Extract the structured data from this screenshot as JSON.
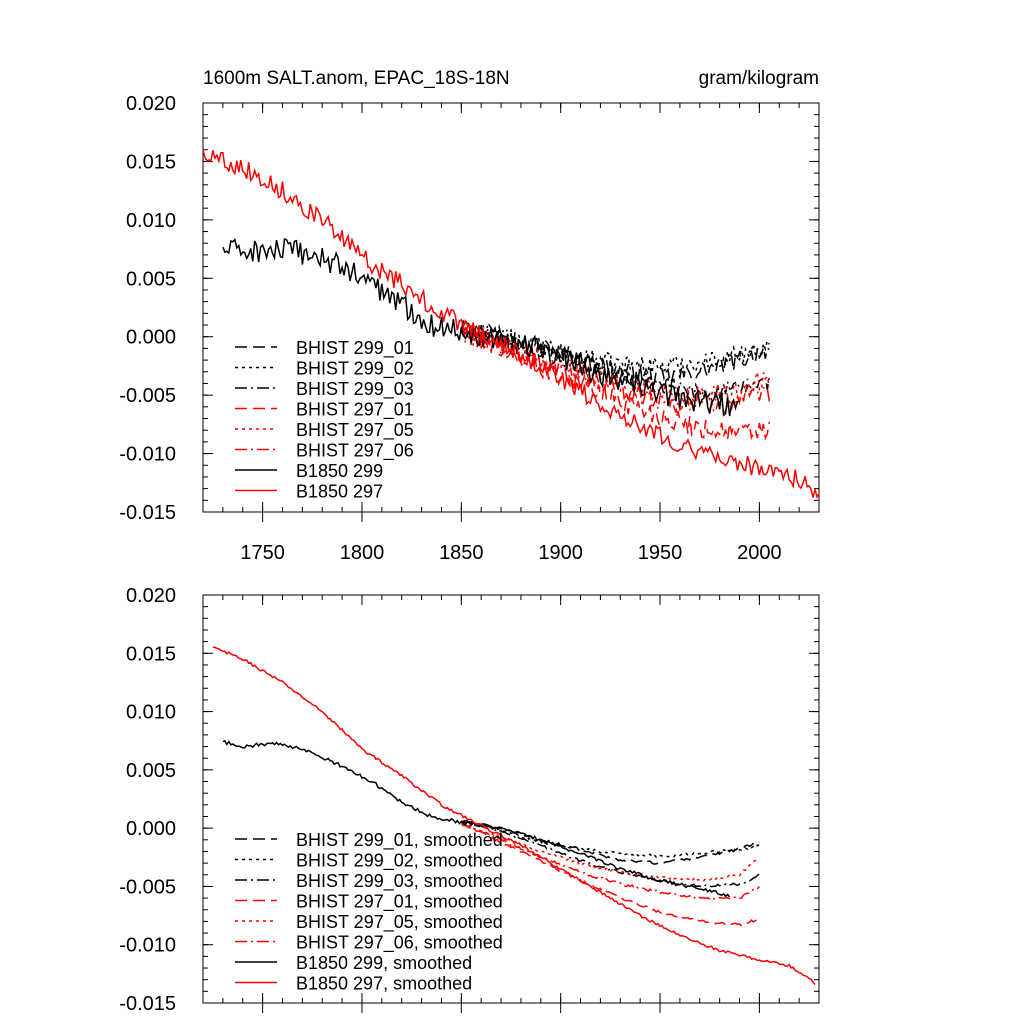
{
  "chart_data": [
    {
      "type": "line",
      "title": "1600m SALT.anom, EPAC_18S-18N",
      "units": "gram/kilogram",
      "xlim": [
        1720,
        2030
      ],
      "ylim": [
        -0.015,
        0.02
      ],
      "x_ticks": [
        1750,
        1800,
        1850,
        1900,
        1950,
        2000
      ],
      "x_tick_labels": [
        "1750",
        "1800",
        "1850",
        "1900",
        "1950",
        "2000"
      ],
      "y_ticks": [
        0.02,
        0.015,
        0.01,
        0.005,
        0.0,
        -0.005,
        -0.01,
        -0.015
      ],
      "y_tick_labels": [
        "0.020",
        "0.015",
        "0.010",
        "0.005",
        "0.000",
        "-0.005",
        "-0.010",
        "-0.015"
      ],
      "legend_position": "bottom-left",
      "series": [
        {
          "name": "BHIST 299_01",
          "color": "#000000",
          "dash": "dash",
          "x": [
            1850,
            1870,
            1890,
            1910,
            1930,
            1950,
            1970,
            1990,
            2005
          ],
          "y": [
            0.0008,
            0.0002,
            -0.0008,
            -0.0018,
            -0.0028,
            -0.0035,
            -0.003,
            -0.002,
            -0.001
          ],
          "noise": 0.0008
        },
        {
          "name": "BHIST 299_02",
          "color": "#000000",
          "dash": "dot",
          "x": [
            1850,
            1870,
            1890,
            1910,
            1930,
            1950,
            1970,
            1990,
            2005
          ],
          "y": [
            0.0008,
            0.0,
            -0.001,
            -0.0017,
            -0.0023,
            -0.0025,
            -0.0022,
            -0.0015,
            -0.0008
          ],
          "noise": 0.0008
        },
        {
          "name": "BHIST 299_03",
          "color": "#000000",
          "dash": "dashdot",
          "x": [
            1850,
            1870,
            1890,
            1910,
            1930,
            1950,
            1970,
            1990,
            2005
          ],
          "y": [
            0.0008,
            0.0,
            -0.0012,
            -0.0025,
            -0.0035,
            -0.0042,
            -0.0048,
            -0.0045,
            -0.0038
          ],
          "noise": 0.0008
        },
        {
          "name": "BHIST 297_01",
          "color": "#ff0000",
          "dash": "dash",
          "x": [
            1850,
            1870,
            1890,
            1910,
            1930,
            1950,
            1970,
            1990,
            2005
          ],
          "y": [
            0.0005,
            -0.001,
            -0.0025,
            -0.004,
            -0.0055,
            -0.0068,
            -0.0078,
            -0.0082,
            -0.008
          ],
          "noise": 0.0009
        },
        {
          "name": "BHIST 297_05",
          "color": "#ff0000",
          "dash": "dot",
          "x": [
            1850,
            1870,
            1890,
            1910,
            1930,
            1950,
            1970,
            1990,
            2005
          ],
          "y": [
            0.0005,
            -0.0008,
            -0.002,
            -0.003,
            -0.004,
            -0.0048,
            -0.005,
            -0.0045,
            -0.0035
          ],
          "noise": 0.0009
        },
        {
          "name": "BHIST 297_06",
          "color": "#ff0000",
          "dash": "dashdot",
          "x": [
            1850,
            1870,
            1890,
            1910,
            1930,
            1950,
            1970,
            1990,
            2005
          ],
          "y": [
            0.0005,
            -0.001,
            -0.0022,
            -0.0035,
            -0.0045,
            -0.0055,
            -0.0058,
            -0.0055,
            -0.005
          ],
          "noise": 0.0009
        },
        {
          "name": "B1850 299",
          "color": "#000000",
          "dash": "solid",
          "x": [
            1730,
            1745,
            1760,
            1775,
            1790,
            1805,
            1820,
            1835,
            1850,
            1870,
            1890,
            1910,
            1930,
            1950,
            1970,
            1990
          ],
          "y": [
            0.0075,
            0.0073,
            0.0074,
            0.007,
            0.006,
            0.0045,
            0.0028,
            0.001,
            0.0005,
            -0.0002,
            -0.0012,
            -0.0025,
            -0.0038,
            -0.0048,
            -0.0055,
            -0.006
          ],
          "noise": 0.001
        },
        {
          "name": "B1850 297",
          "color": "#ff0000",
          "dash": "solid",
          "x": [
            1720,
            1740,
            1760,
            1780,
            1800,
            1820,
            1840,
            1860,
            1880,
            1900,
            1920,
            1940,
            1960,
            1980,
            2000,
            2015,
            2030
          ],
          "y": [
            0.0158,
            0.0145,
            0.0125,
            0.01,
            0.0068,
            0.0045,
            0.002,
            0.0002,
            -0.0015,
            -0.0035,
            -0.0058,
            -0.0075,
            -0.0092,
            -0.0105,
            -0.0112,
            -0.0118,
            -0.0135
          ],
          "noise": 0.0008
        }
      ]
    },
    {
      "type": "line",
      "title": "",
      "units": "",
      "xlim": [
        1720,
        2030
      ],
      "ylim": [
        -0.015,
        0.02
      ],
      "x_ticks": [
        1750,
        1800,
        1850,
        1900,
        1950,
        2000
      ],
      "x_tick_labels": [],
      "y_ticks": [
        0.02,
        0.015,
        0.01,
        0.005,
        0.0,
        -0.005,
        -0.01,
        -0.015
      ],
      "y_tick_labels": [
        "0.020",
        "0.015",
        "0.010",
        "0.005",
        "0.000",
        "-0.005",
        "-0.010",
        "-0.015"
      ],
      "legend_position": "bottom-left",
      "series": [
        {
          "name": "BHIST 299_01, smoothed",
          "color": "#000000",
          "dash": "dash",
          "x": [
            1850,
            1870,
            1890,
            1910,
            1930,
            1950,
            1970,
            1990,
            2000
          ],
          "y": [
            0.0006,
            0.0,
            -0.001,
            -0.0018,
            -0.0028,
            -0.003,
            -0.0025,
            -0.0018,
            -0.0012
          ],
          "noise": 0.00012
        },
        {
          "name": "BHIST 299_02, smoothed",
          "color": "#000000",
          "dash": "dot",
          "x": [
            1850,
            1870,
            1890,
            1910,
            1930,
            1950,
            1970,
            1990,
            2000
          ],
          "y": [
            0.0006,
            -0.0002,
            -0.0012,
            -0.0018,
            -0.0022,
            -0.0024,
            -0.0022,
            -0.0018,
            -0.0015
          ],
          "noise": 0.00012
        },
        {
          "name": "BHIST 299_03, smoothed",
          "color": "#000000",
          "dash": "dashdot",
          "x": [
            1850,
            1870,
            1890,
            1910,
            1930,
            1950,
            1970,
            1990,
            2000
          ],
          "y": [
            0.0006,
            -0.0002,
            -0.0015,
            -0.0028,
            -0.0038,
            -0.0045,
            -0.005,
            -0.0048,
            -0.004
          ],
          "noise": 0.00012
        },
        {
          "name": "BHIST 297_01, smoothed",
          "color": "#ff0000",
          "dash": "dash",
          "x": [
            1850,
            1870,
            1890,
            1910,
            1930,
            1950,
            1970,
            1990,
            2000
          ],
          "y": [
            0.0004,
            -0.0012,
            -0.0028,
            -0.0045,
            -0.006,
            -0.0072,
            -0.008,
            -0.0083,
            -0.0078
          ],
          "noise": 0.00012
        },
        {
          "name": "BHIST 297_05, smoothed",
          "color": "#ff0000",
          "dash": "dot",
          "x": [
            1850,
            1870,
            1890,
            1910,
            1930,
            1950,
            1970,
            1990,
            2000
          ],
          "y": [
            0.0004,
            -0.0008,
            -0.002,
            -0.003,
            -0.0038,
            -0.0042,
            -0.0045,
            -0.004,
            -0.0025
          ],
          "noise": 0.00012
        },
        {
          "name": "BHIST 297_06, smoothed",
          "color": "#ff0000",
          "dash": "dashdot",
          "x": [
            1850,
            1870,
            1890,
            1910,
            1930,
            1950,
            1970,
            1990,
            2000
          ],
          "y": [
            0.0004,
            -0.001,
            -0.0025,
            -0.0038,
            -0.0048,
            -0.0055,
            -0.006,
            -0.006,
            -0.005
          ],
          "noise": 0.00012
        },
        {
          "name": "B1850 299, smoothed",
          "color": "#000000",
          "dash": "solid",
          "x": [
            1730,
            1740,
            1750,
            1760,
            1775,
            1790,
            1805,
            1820,
            1835,
            1850,
            1870,
            1890,
            1910,
            1930,
            1950,
            1970,
            1985
          ],
          "y": [
            0.0074,
            0.007,
            0.0072,
            0.0072,
            0.0065,
            0.0053,
            0.004,
            0.0022,
            0.001,
            0.0005,
            0.0,
            -0.001,
            -0.0022,
            -0.0035,
            -0.0045,
            -0.0052,
            -0.0058
          ],
          "noise": 0.00015
        },
        {
          "name": "B1850 297, smoothed",
          "color": "#ff0000",
          "dash": "solid",
          "x": [
            1725,
            1740,
            1760,
            1780,
            1800,
            1820,
            1840,
            1860,
            1880,
            1900,
            1920,
            1940,
            1960,
            1980,
            2000,
            2015,
            2028
          ],
          "y": [
            0.0155,
            0.0145,
            0.0125,
            0.01,
            0.0068,
            0.0045,
            0.002,
            0.0002,
            -0.0015,
            -0.0035,
            -0.0055,
            -0.0075,
            -0.0092,
            -0.0105,
            -0.0113,
            -0.0118,
            -0.0133
          ],
          "noise": 0.00012
        }
      ]
    }
  ]
}
